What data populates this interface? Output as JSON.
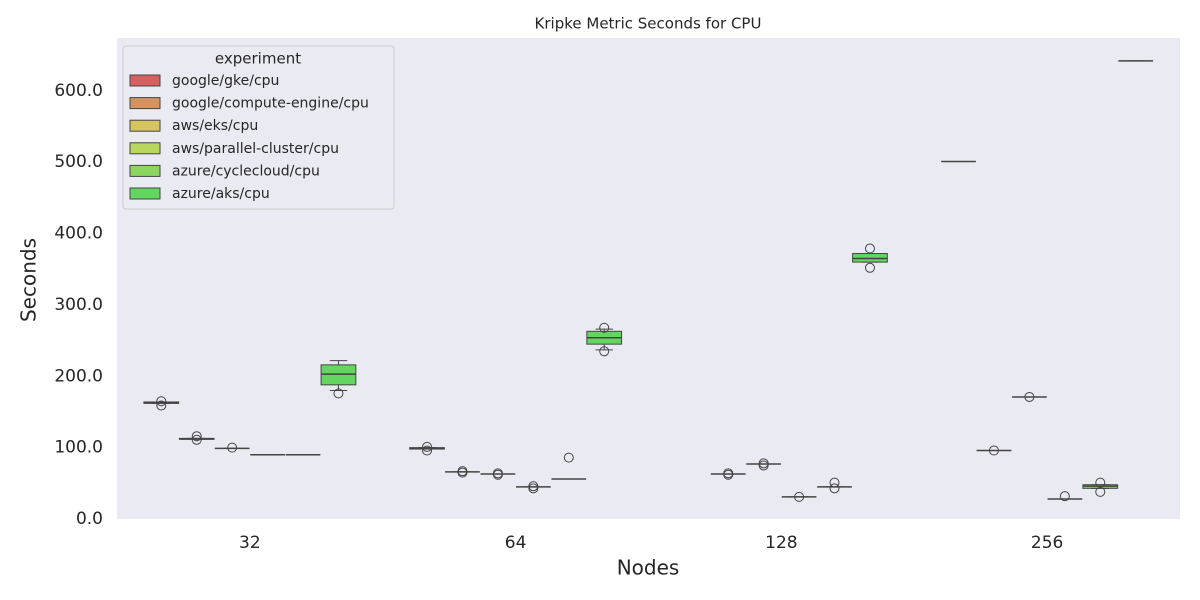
{
  "chart_data": {
    "type": "box",
    "title": "Kripke Metric Seconds for CPU",
    "x_label": "Nodes",
    "y_label": "Seconds",
    "categories": [
      "32",
      "64",
      "128",
      "256"
    ],
    "legend_title": "experiment",
    "legend_position": "upper-left",
    "grid": false,
    "ylim": [
      0,
      674
    ],
    "yticks": [
      {
        "value": 0,
        "label": "0.0"
      },
      {
        "value": 100,
        "label": "100.0"
      },
      {
        "value": 200,
        "label": "200.0"
      },
      {
        "value": 300,
        "label": "300.0"
      },
      {
        "value": 400,
        "label": "400.0"
      },
      {
        "value": 500,
        "label": "500.0"
      },
      {
        "value": 600,
        "label": "600.0"
      }
    ],
    "series": [
      {
        "name": "google/gke/cpu",
        "color": "#d65f5f",
        "values": [
          {
            "min": 162,
            "q1": 162,
            "median": 163,
            "q3": 164,
            "max": 164,
            "outliers": [
              159,
              165
            ]
          },
          {
            "min": 98,
            "q1": 98,
            "median": 99,
            "q3": 100,
            "max": 100,
            "outliers": [
              101,
              96
            ]
          },
          null,
          {
            "min": 501,
            "q1": 501,
            "median": 501,
            "q3": 501,
            "max": 501,
            "outliers": []
          }
        ]
      },
      {
        "name": "google/compute-engine/cpu",
        "color": "#d6925f",
        "values": [
          {
            "min": 112,
            "q1": 112,
            "median": 112,
            "q3": 113,
            "max": 113,
            "outliers": [
              116,
              111
            ]
          },
          {
            "min": 66,
            "q1": 66,
            "median": 66,
            "q3": 66,
            "max": 66,
            "outliers": [
              67,
              65
            ]
          },
          {
            "min": 63,
            "q1": 63,
            "median": 63,
            "q3": 63,
            "max": 63,
            "outliers": [
              64,
              62
            ]
          },
          {
            "min": 96,
            "q1": 96,
            "median": 96,
            "q3": 96,
            "max": 96,
            "outliers": [
              96
            ]
          }
        ]
      },
      {
        "name": "aws/eks/cpu",
        "color": "#d6c45f",
        "values": [
          {
            "min": 99,
            "q1": 99,
            "median": 99,
            "q3": 99,
            "max": 99,
            "outliers": [
              100
            ]
          },
          {
            "min": 63,
            "q1": 63,
            "median": 63,
            "q3": 63,
            "max": 63,
            "outliers": [
              64,
              62
            ]
          },
          {
            "min": 77,
            "q1": 77,
            "median": 77,
            "q3": 77,
            "max": 77,
            "outliers": [
              78,
              75
            ]
          },
          {
            "min": 171,
            "q1": 171,
            "median": 171,
            "q3": 171,
            "max": 171,
            "outliers": [
              171
            ]
          }
        ]
      },
      {
        "name": "aws/parallel-cluster/cpu",
        "color": "#b9d65f",
        "values": [
          {
            "min": 90,
            "q1": 90,
            "median": 90,
            "q3": 90,
            "max": 90,
            "outliers": []
          },
          {
            "min": 45,
            "q1": 45,
            "median": 45,
            "q3": 45,
            "max": 45,
            "outliers": [
              46,
              43
            ]
          },
          {
            "min": 31,
            "q1": 31,
            "median": 31,
            "q3": 31,
            "max": 31,
            "outliers": [
              31
            ]
          },
          {
            "min": 28,
            "q1": 28,
            "median": 28,
            "q3": 28,
            "max": 28,
            "outliers": [
              32
            ]
          }
        ]
      },
      {
        "name": "azure/cyclecloud/cpu",
        "color": "#8bd65f",
        "values": [
          {
            "min": 90,
            "q1": 90,
            "median": 90,
            "q3": 90,
            "max": 90,
            "outliers": []
          },
          {
            "min": 56,
            "q1": 56,
            "median": 56,
            "q3": 56,
            "max": 56,
            "outliers": [
              86
            ]
          },
          {
            "min": 45,
            "q1": 45,
            "median": 45,
            "q3": 45,
            "max": 45,
            "outliers": [
              51,
              43
            ]
          },
          {
            "min": 43,
            "q1": 43,
            "median": 46,
            "q3": 48,
            "max": 48,
            "outliers": [
              51,
              38
            ]
          }
        ]
      },
      {
        "name": "azure/aks/cpu",
        "color": "#62d65f",
        "values": [
          {
            "min": 180,
            "q1": 188,
            "median": 203,
            "q3": 216,
            "max": 222,
            "outliers": [
              176
            ]
          },
          {
            "min": 237,
            "q1": 245,
            "median": 254,
            "q3": 263,
            "max": 266,
            "outliers": [
              268,
              235
            ]
          },
          {
            "min": 360,
            "q1": 360,
            "median": 365,
            "q3": 372,
            "max": 372,
            "outliers": [
              379,
              352
            ]
          },
          {
            "min": 642,
            "q1": 642,
            "median": 642,
            "q3": 642,
            "max": 642,
            "outliers": []
          }
        ]
      }
    ]
  }
}
